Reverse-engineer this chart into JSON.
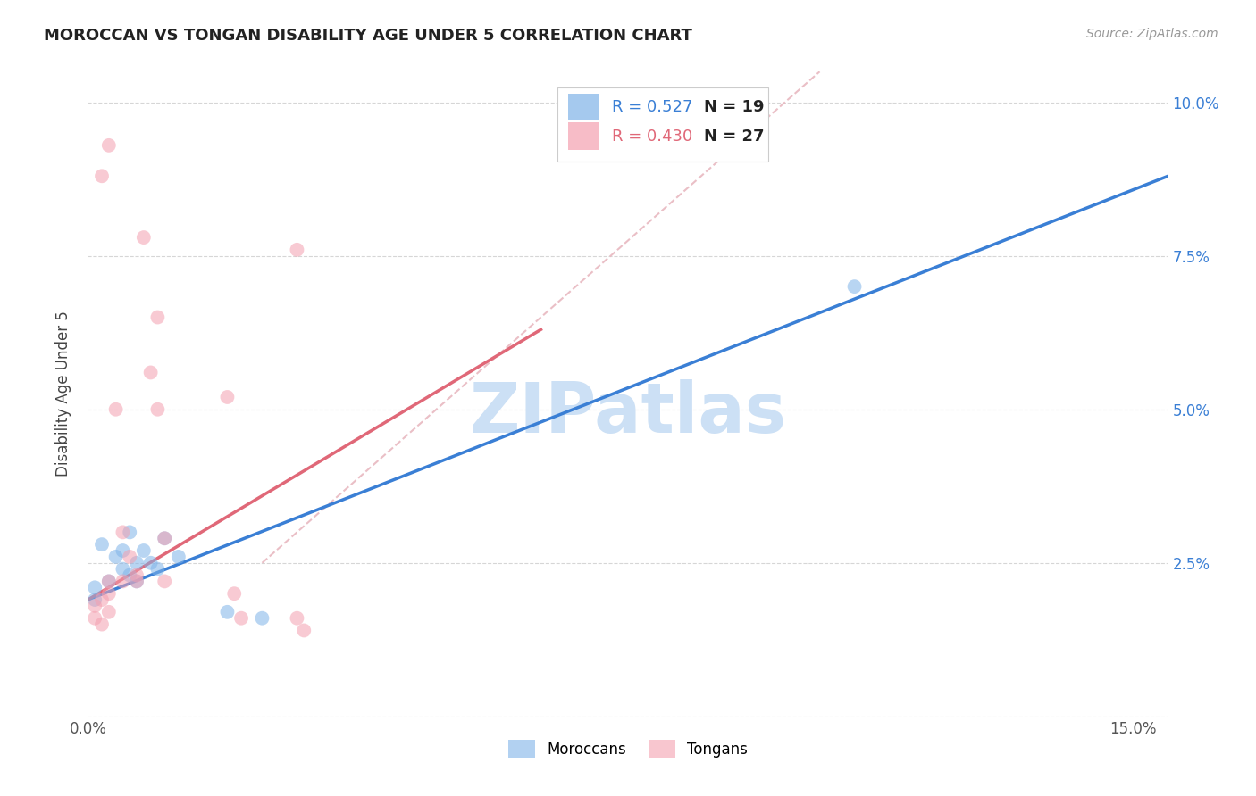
{
  "title": "MOROCCAN VS TONGAN DISABILITY AGE UNDER 5 CORRELATION CHART",
  "source": "Source: ZipAtlas.com",
  "ylabel": "Disability Age Under 5",
  "background_color": "#ffffff",
  "grid_color": "#cccccc",
  "watermark_text": "ZIPatlas",
  "watermark_color": "#cce0f5",
  "moroccan_color": "#7fb3e8",
  "tongan_color": "#f4a0b0",
  "moroccan_line_color": "#3a7fd5",
  "tongan_line_color": "#e06878",
  "diagonal_color": "#e8b8c0",
  "R_moroccan": 0.527,
  "N_moroccan": 19,
  "R_tongan": 0.43,
  "N_tongan": 27,
  "xlim": [
    0.0,
    0.155
  ],
  "ylim": [
    0.0,
    0.105
  ],
  "moroccan_x": [
    0.001,
    0.001,
    0.002,
    0.003,
    0.004,
    0.005,
    0.005,
    0.006,
    0.006,
    0.007,
    0.007,
    0.008,
    0.009,
    0.01,
    0.011,
    0.013,
    0.02,
    0.025,
    0.11
  ],
  "moroccan_y": [
    0.019,
    0.021,
    0.028,
    0.022,
    0.026,
    0.027,
    0.024,
    0.03,
    0.023,
    0.022,
    0.025,
    0.027,
    0.025,
    0.024,
    0.029,
    0.026,
    0.017,
    0.016,
    0.07
  ],
  "tongan_x": [
    0.001,
    0.001,
    0.002,
    0.002,
    0.003,
    0.003,
    0.003,
    0.004,
    0.005,
    0.005,
    0.006,
    0.007,
    0.007,
    0.008,
    0.009,
    0.01,
    0.01,
    0.011,
    0.011,
    0.02,
    0.021,
    0.022,
    0.03,
    0.03,
    0.031,
    0.003,
    0.002
  ],
  "tongan_y": [
    0.018,
    0.016,
    0.015,
    0.019,
    0.02,
    0.022,
    0.017,
    0.05,
    0.022,
    0.03,
    0.026,
    0.023,
    0.022,
    0.078,
    0.056,
    0.065,
    0.05,
    0.029,
    0.022,
    0.052,
    0.02,
    0.016,
    0.016,
    0.076,
    0.014,
    0.093,
    0.088
  ],
  "blue_line": [
    0.0,
    0.155,
    0.019,
    0.088
  ],
  "pink_line": [
    0.0,
    0.065,
    0.019,
    0.063
  ],
  "diag_line": [
    0.025,
    0.105,
    0.025,
    0.105
  ]
}
